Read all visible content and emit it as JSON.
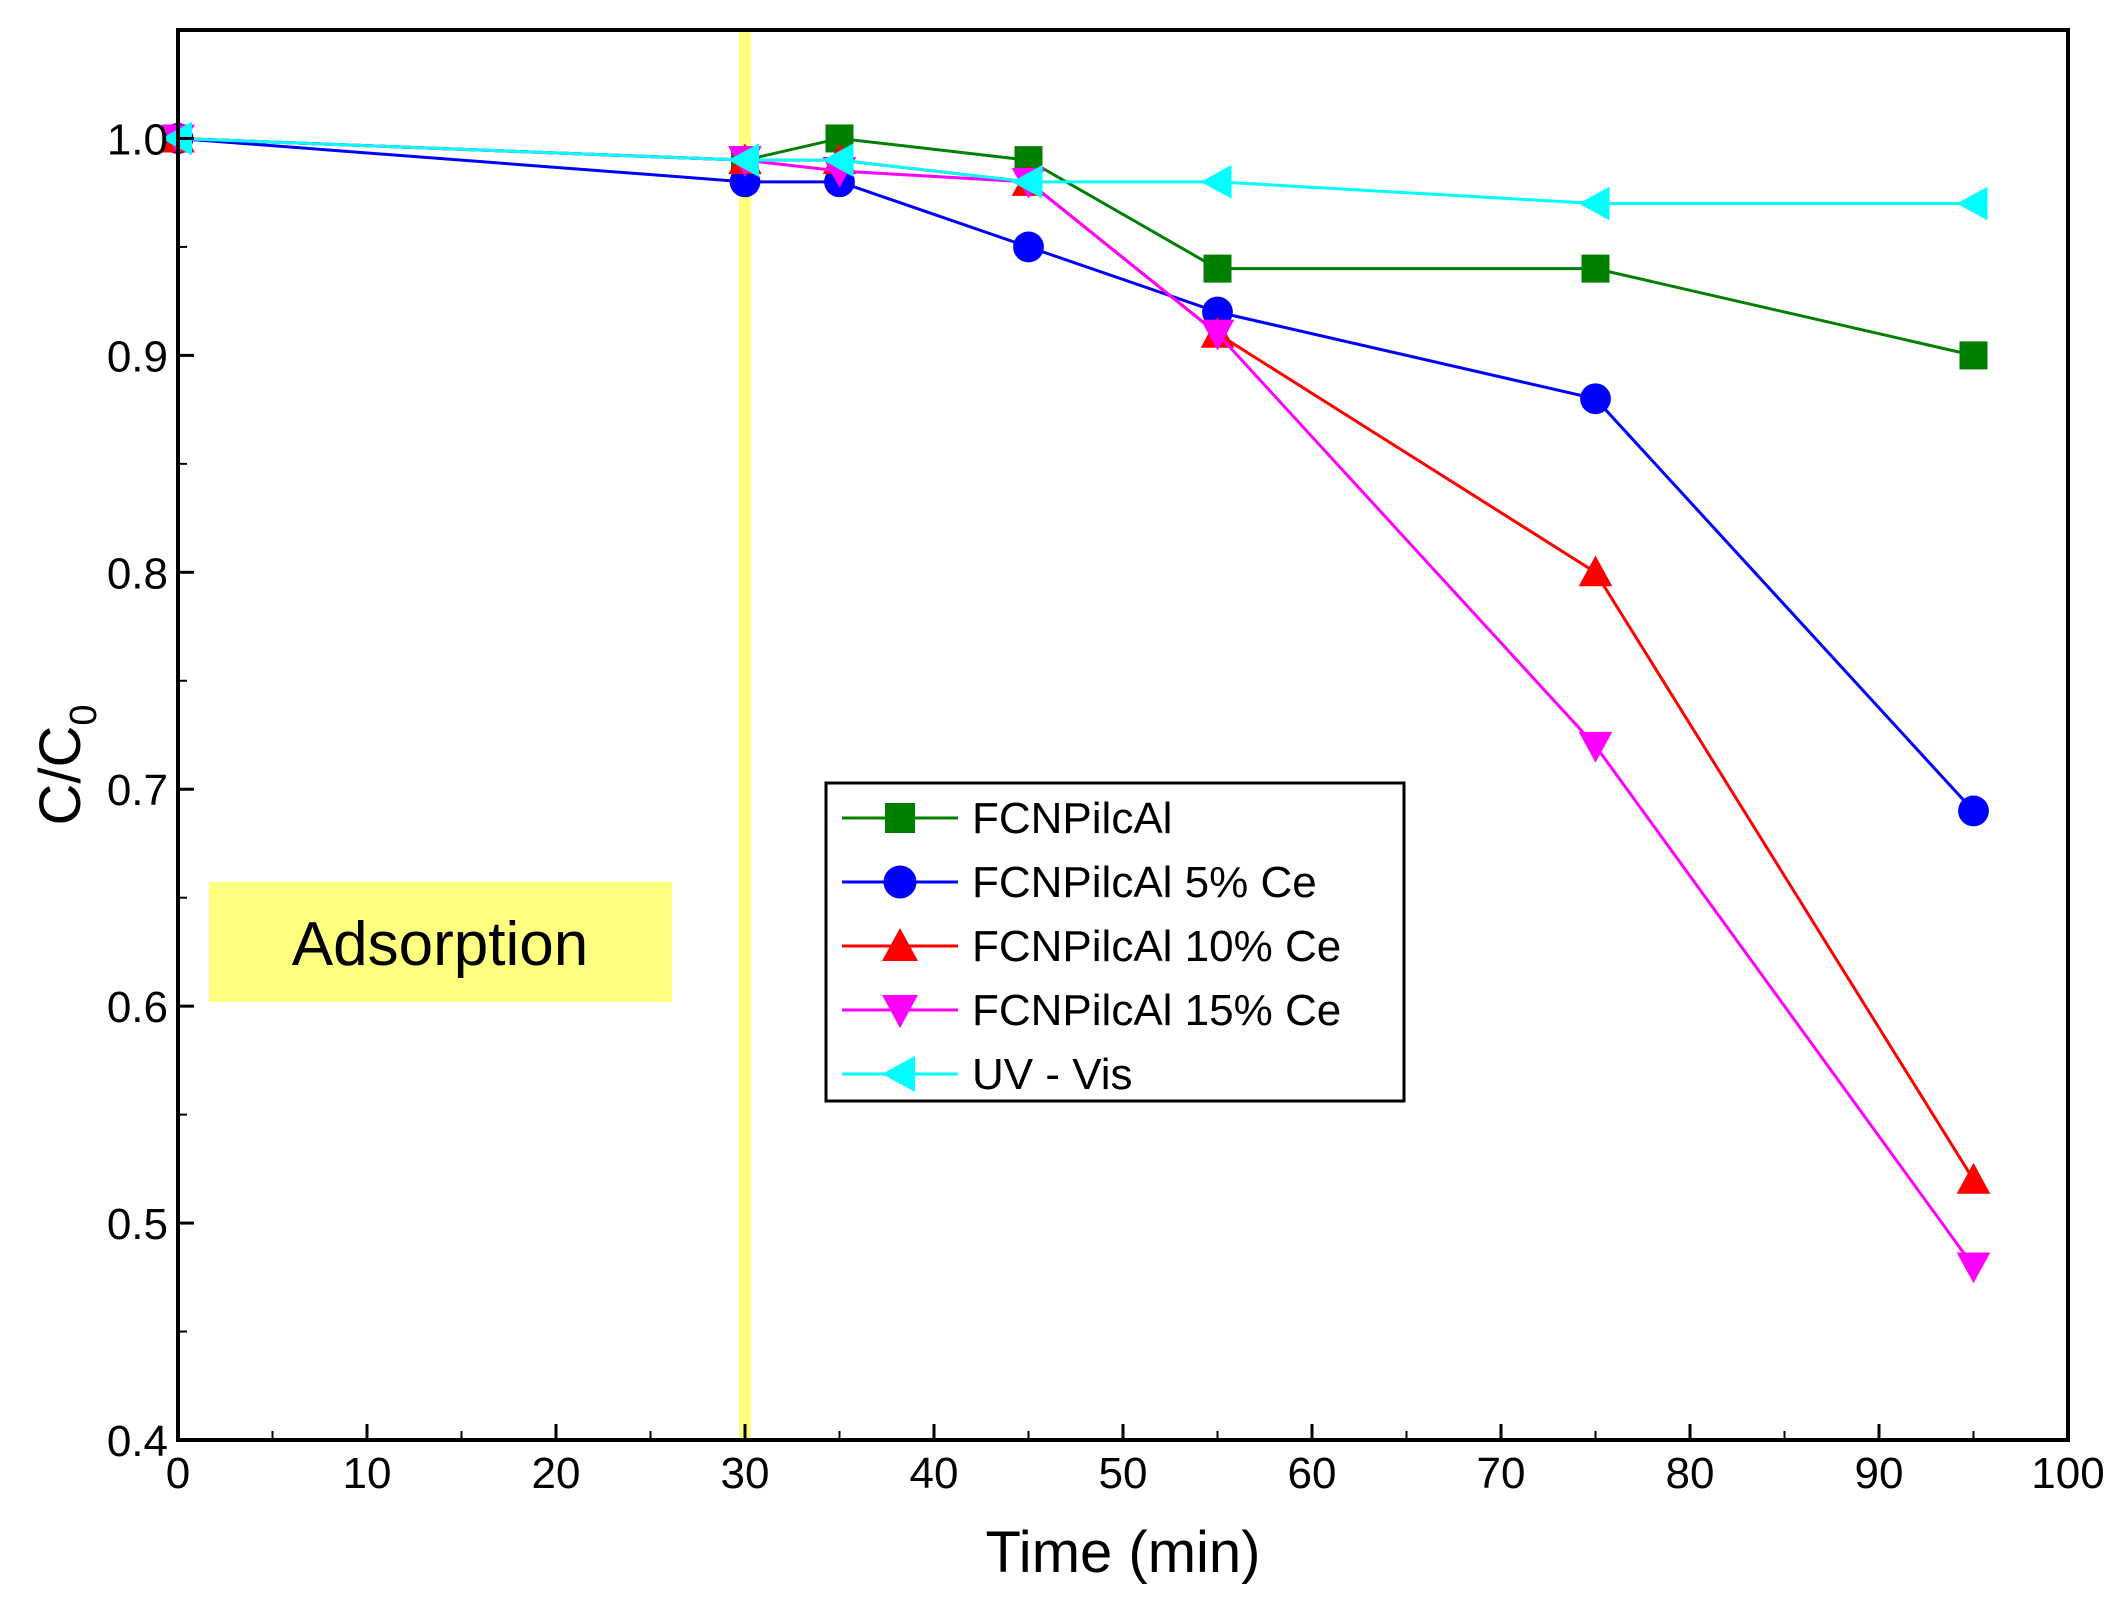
{
  "chart_data": {
    "type": "line",
    "title": "",
    "xlabel": "Time (min)",
    "ylabel_main": "C/C",
    "ylabel_sub": "0",
    "xlim": [
      0,
      100
    ],
    "ylim": [
      0.4,
      1.05
    ],
    "x_ticks": [
      0,
      10,
      20,
      30,
      40,
      50,
      60,
      70,
      80,
      90,
      100
    ],
    "x_tick_labels": [
      "0",
      "10",
      "20",
      "30",
      "40",
      "50",
      "60",
      "70",
      "80",
      "90",
      "100"
    ],
    "y_ticks": [
      0.4,
      0.5,
      0.6,
      0.7,
      0.8,
      0.9,
      1.0
    ],
    "y_tick_labels": [
      "0.4",
      "0.5",
      "0.6",
      "0.7",
      "0.8",
      "0.9",
      "1.0"
    ],
    "grid": false,
    "legend_position": "center",
    "annotation": {
      "text": "Adsorption",
      "box_color": "#FFFF80",
      "divider_x": 30,
      "divider_color": "#FFFF80"
    },
    "series": [
      {
        "name": "FCNPilcAl",
        "color": "#007F00",
        "marker": "square",
        "x": [
          0,
          30,
          35,
          45,
          55,
          75,
          95
        ],
        "y": [
          1.0,
          0.99,
          1.0,
          0.99,
          0.94,
          0.94,
          0.9
        ]
      },
      {
        "name": "FCNPilcAl 5% Ce",
        "color": "#0000FF",
        "marker": "circle",
        "x": [
          0,
          30,
          35,
          45,
          55,
          75,
          95
        ],
        "y": [
          1.0,
          0.98,
          0.98,
          0.95,
          0.92,
          0.88,
          0.69
        ]
      },
      {
        "name": "FCNPilcAl 10% Ce",
        "color": "#FF0000",
        "marker": "triangle-up",
        "x": [
          0,
          30,
          35,
          45,
          55,
          75,
          95
        ],
        "y": [
          1.0,
          0.99,
          0.99,
          0.98,
          0.91,
          0.8,
          0.52
        ]
      },
      {
        "name": "FCNPilcAl 15% Ce",
        "color": "#FF00FF",
        "marker": "triangle-down",
        "x": [
          0,
          30,
          35,
          45,
          55,
          75,
          95
        ],
        "y": [
          1.0,
          0.99,
          0.985,
          0.98,
          0.91,
          0.72,
          0.48
        ]
      },
      {
        "name": "UV - Vis",
        "color": "#00FFFF",
        "marker": "triangle-left",
        "x": [
          0,
          30,
          35,
          45,
          55,
          75,
          95
        ],
        "y": [
          1.0,
          0.99,
          0.99,
          0.98,
          0.98,
          0.97,
          0.97
        ]
      }
    ]
  }
}
